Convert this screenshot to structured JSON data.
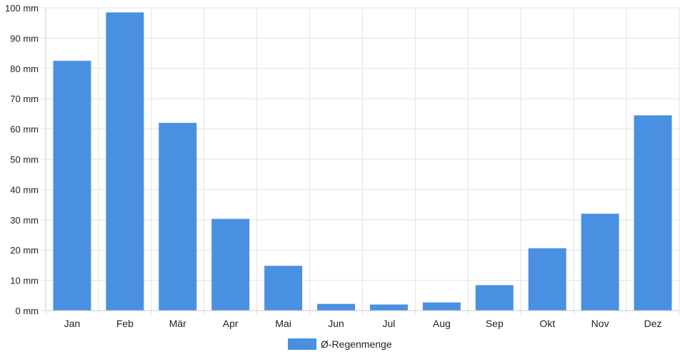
{
  "chart_data": {
    "type": "bar",
    "categories": [
      "Jan",
      "Feb",
      "Mär",
      "Apr",
      "Mai",
      "Jun",
      "Jul",
      "Aug",
      "Sep",
      "Okt",
      "Nov",
      "Dez"
    ],
    "series": [
      {
        "name": "Ø-Regenmenge",
        "values": [
          82.5,
          98.5,
          62,
          30.3,
          14.8,
          2.2,
          2,
          2.7,
          8.4,
          20.6,
          32,
          64.5
        ],
        "color": "#4a90e2"
      }
    ],
    "y_ticks": [
      "0 mm",
      "10 mm",
      "20 mm",
      "30 mm",
      "40 mm",
      "50 mm",
      "60 mm",
      "70 mm",
      "80 mm",
      "90 mm",
      "100 mm"
    ],
    "ylim": [
      0,
      100
    ],
    "y_unit": "mm",
    "grid": true,
    "legend_position": "bottom-center",
    "title": "",
    "xlabel": "",
    "ylabel": ""
  }
}
